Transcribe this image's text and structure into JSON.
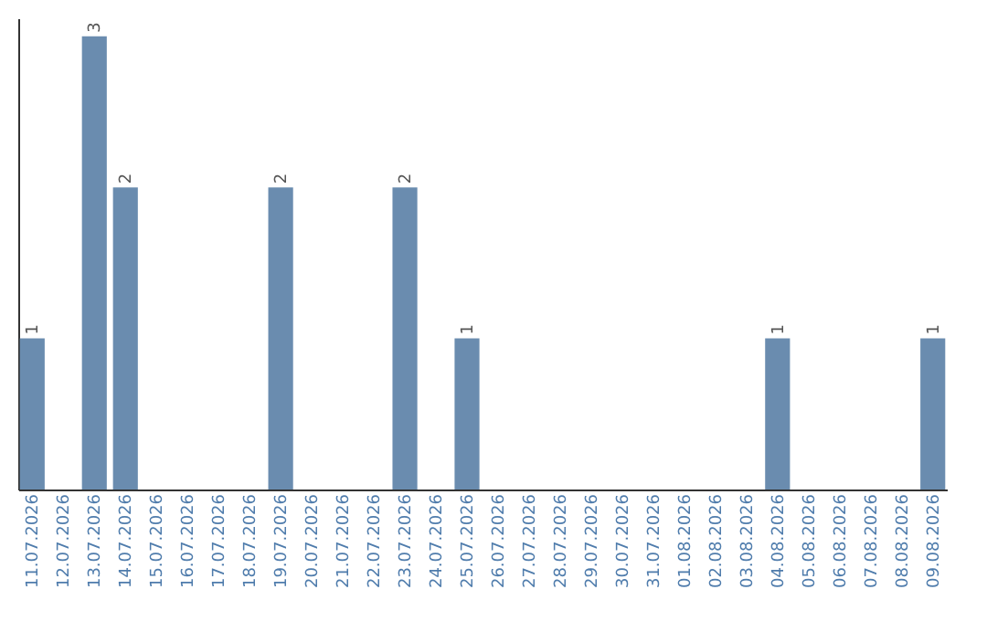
{
  "chart_data": {
    "type": "bar",
    "categories": [
      "11.07.2026",
      "12.07.2026",
      "13.07.2026",
      "14.07.2026",
      "15.07.2026",
      "16.07.2026",
      "17.07.2026",
      "18.07.2026",
      "19.07.2026",
      "20.07.2026",
      "21.07.2026",
      "22.07.2026",
      "23.07.2026",
      "24.07.2026",
      "25.07.2026",
      "26.07.2026",
      "27.07.2026",
      "28.07.2026",
      "29.07.2026",
      "30.07.2026",
      "31.07.2026",
      "01.08.2026",
      "02.08.2026",
      "03.08.2026",
      "04.08.2026",
      "05.08.2026",
      "06.08.2026",
      "07.08.2026",
      "08.08.2026",
      "09.08.2026"
    ],
    "values": [
      1,
      0,
      3,
      2,
      0,
      0,
      0,
      0,
      2,
      0,
      0,
      0,
      2,
      0,
      1,
      0,
      0,
      0,
      0,
      0,
      0,
      0,
      0,
      0,
      1,
      0,
      0,
      0,
      0,
      1
    ],
    "value_labels": [
      "1",
      null,
      "3",
      "2",
      null,
      null,
      null,
      null,
      "2",
      null,
      null,
      null,
      "2",
      null,
      "1",
      null,
      null,
      null,
      null,
      null,
      null,
      null,
      null,
      null,
      "1",
      null,
      null,
      null,
      null,
      "1"
    ],
    "color": "#6a8caf",
    "grid": false,
    "tick_labels": "x"
  }
}
